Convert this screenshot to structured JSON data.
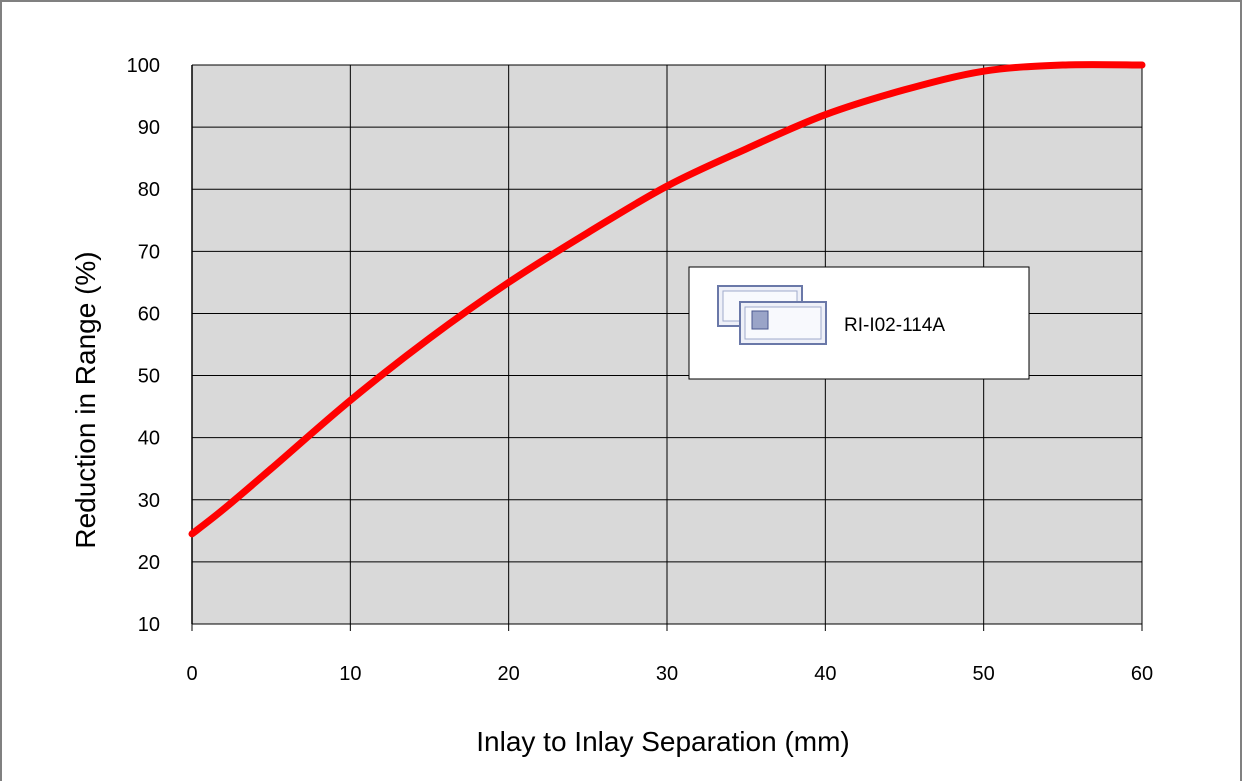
{
  "chart_data": {
    "type": "line",
    "title": "",
    "xlabel": "Inlay to Inlay Separation (mm)",
    "ylabel": "Reduction in Range (%)",
    "xlim": [
      0,
      60
    ],
    "ylim": [
      10,
      100
    ],
    "xticks": [
      "0",
      "10",
      "20",
      "30",
      "40",
      "50",
      "60"
    ],
    "yticks": [
      "10",
      "20",
      "30",
      "40",
      "50",
      "60",
      "70",
      "80",
      "90",
      "100"
    ],
    "grid": true,
    "plot_background": "#d9d9d9",
    "legend_position": "center-right",
    "series": [
      {
        "name": "RI-I02-114A",
        "color": "#ff0000",
        "icon": "inlay-tag-icon",
        "x": [
          0,
          2,
          5,
          10,
          15,
          20,
          25,
          30,
          35,
          40,
          45,
          50,
          55,
          60
        ],
        "y": [
          24.5,
          28.5,
          35,
          46,
          56,
          65,
          73,
          80.5,
          86.5,
          92,
          96,
          99,
          100,
          100
        ]
      }
    ]
  }
}
